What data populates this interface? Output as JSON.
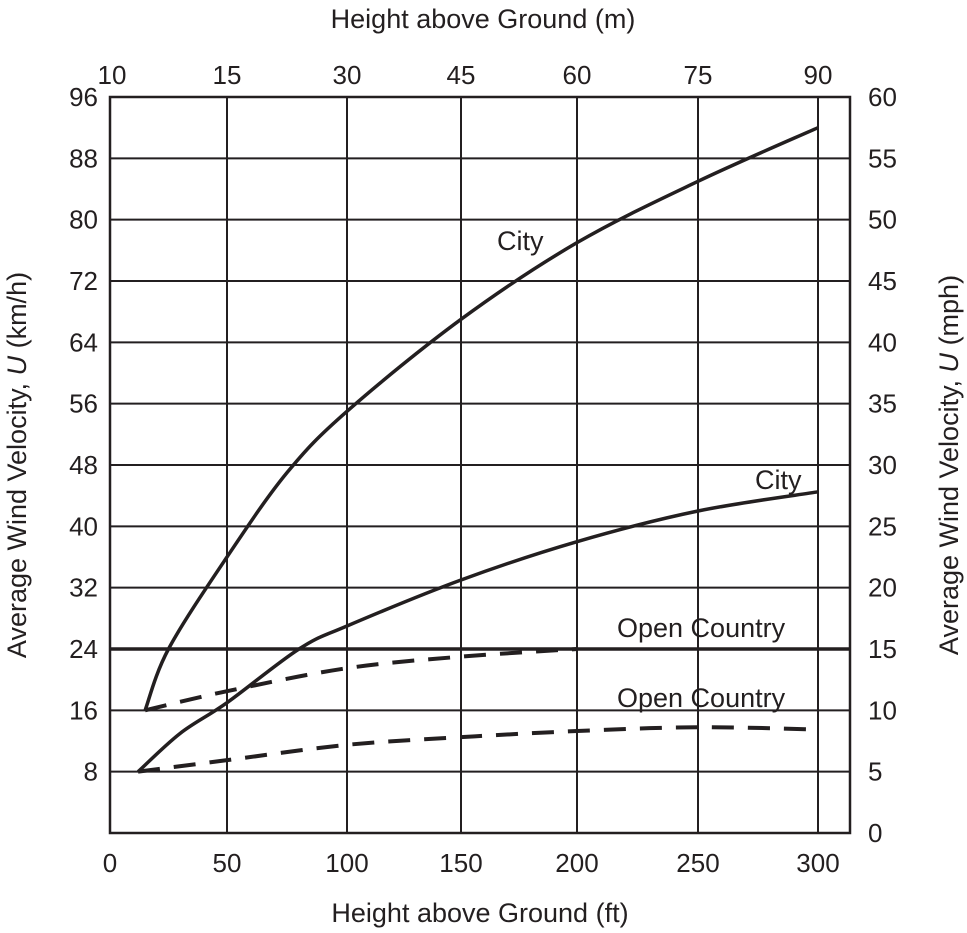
{
  "chart_data": {
    "type": "line",
    "title": "",
    "xlabel": "Height above Ground (ft)",
    "x2label": "Height above Ground (m)",
    "ylabel": "Average Wind Velocity, U (km/h)",
    "y2label": "Average Wind Velocity, U (mph)",
    "xlim": [
      0,
      315
    ],
    "ylim": [
      0,
      96
    ],
    "y2lim": [
      0,
      60
    ],
    "grid": true,
    "x_ticks": [
      0,
      50,
      100,
      150,
      200,
      250,
      300
    ],
    "x_tick_labels": [
      "0",
      "50",
      "100",
      "150",
      "200",
      "250",
      "300"
    ],
    "x2_tick_labels": [
      "10",
      "15",
      "30",
      "45",
      "60",
      "75",
      "90"
    ],
    "y_ticks": [
      8,
      16,
      24,
      32,
      40,
      48,
      56,
      64,
      72,
      80,
      88,
      96
    ],
    "y_tick_labels": [
      "8",
      "16",
      "24",
      "32",
      "40",
      "48",
      "56",
      "64",
      "72",
      "80",
      "88",
      "96"
    ],
    "y2_ticks": [
      0,
      5,
      10,
      15,
      20,
      25,
      30,
      35,
      40,
      45,
      50,
      55,
      60
    ],
    "y2_tick_labels": [
      "0",
      "5",
      "10",
      "15",
      "20",
      "25",
      "30",
      "35",
      "40",
      "45",
      "50",
      "55",
      "60"
    ],
    "series": [
      {
        "name": "City (upper)",
        "label": "City",
        "style": "solid",
        "x": [
          15,
          25,
          50,
          75,
          100,
          150,
          200,
          250,
          300
        ],
        "values": [
          16,
          24,
          36,
          47,
          55,
          67,
          77,
          85,
          92
        ]
      },
      {
        "name": "City (lower)",
        "label": "City",
        "style": "solid",
        "x": [
          12,
          30,
          50,
          80,
          100,
          150,
          200,
          250,
          300
        ],
        "values": [
          8,
          13,
          17,
          24,
          27,
          33,
          38,
          42,
          44.5
        ]
      },
      {
        "name": "Open Country (solid)",
        "label": "Open Country",
        "style": "solid",
        "x": [
          0,
          315
        ],
        "values": [
          24,
          24
        ]
      },
      {
        "name": "Open Country (dashed upper)",
        "label": "",
        "style": "dashed",
        "x": [
          15,
          50,
          100,
          150,
          200
        ],
        "values": [
          16,
          18.5,
          21.5,
          23,
          24
        ]
      },
      {
        "name": "Open Country (dashed lower)",
        "label": "Open Country",
        "style": "dashed",
        "x": [
          12,
          50,
          100,
          150,
          200,
          250,
          300
        ],
        "values": [
          8,
          9.5,
          11.5,
          12.5,
          13.3,
          13.8,
          13.5
        ]
      }
    ],
    "annotations": [
      {
        "text": "City",
        "x": 175,
        "y": 77
      },
      {
        "text": "City",
        "x": 290,
        "y": 46.5
      },
      {
        "text": "Open Country",
        "x": 255,
        "y": 26
      },
      {
        "text": "Open Country",
        "x": 255,
        "y": 17
      }
    ]
  },
  "colors": {
    "ink": "#231f20",
    "background": "#ffffff"
  }
}
